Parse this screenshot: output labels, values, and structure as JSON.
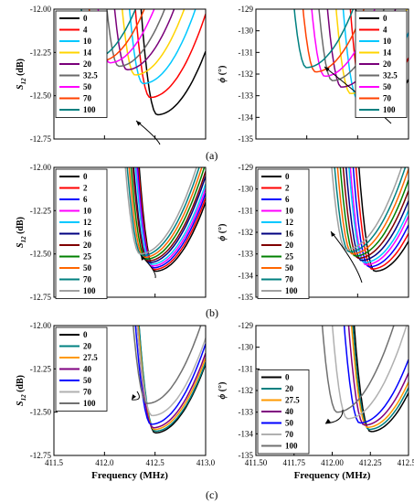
{
  "figure": {
    "panel_labels": [
      "(a)",
      "(b)",
      "(c)"
    ]
  },
  "chart_data": [
    {
      "type": "line",
      "panel": "a-left",
      "ylabel_main": "S",
      "ylabel_sub": "12",
      "ylabel_unit": " (dB)",
      "ylim": [
        -12.75,
        -12.0
      ],
      "yticks": [
        "-12.00",
        "-12.25",
        "-12.50",
        "-12.75"
      ],
      "xlim": [
        411.5,
        413.0
      ],
      "legend_labels": [
        "0",
        "4",
        "10",
        "14",
        "20",
        "32.5",
        "50",
        "70",
        "100"
      ],
      "colors": [
        "#000000",
        "#ff0000",
        "#00c8ff",
        "#ffd400",
        "#7a007a",
        "#6a6a6a",
        "#ff00ff",
        "#ff4000",
        "#008080"
      ],
      "series_min_x": [
        412.52,
        412.45,
        412.38,
        412.3,
        412.22,
        412.14,
        412.05,
        411.96,
        411.88
      ],
      "series_min_y": [
        -12.61,
        -12.51,
        -12.43,
        -12.38,
        -12.35,
        -12.33,
        -12.31,
        -12.3,
        -12.29
      ]
    },
    {
      "type": "line",
      "panel": "a-right",
      "ylabel_main": "ϕ",
      "ylabel_unit": " (°)",
      "ylim": [
        -135,
        -129
      ],
      "yticks": [
        "-129",
        "-130",
        "-131",
        "-132",
        "-133",
        "-134",
        "-135"
      ],
      "xlim": [
        411.5,
        412.5
      ],
      "legend_labels": [
        "0",
        "4",
        "10",
        "14",
        "20",
        "32.5",
        "50",
        "70",
        "100"
      ],
      "colors": [
        "#000000",
        "#ff0000",
        "#00c8ff",
        "#ffd400",
        "#7a007a",
        "#6a6a6a",
        "#ff00ff",
        "#ff4000",
        "#008080"
      ],
      "series_min_x": [
        412.26,
        412.22,
        412.17,
        412.12,
        412.06,
        412.0,
        411.95,
        411.89,
        411.83
      ],
      "series_min_y": [
        -133.9,
        -133.5,
        -133.2,
        -132.9,
        -132.6,
        -132.3,
        -132.1,
        -131.9,
        -131.7
      ]
    },
    {
      "type": "line",
      "panel": "b-left",
      "ylabel_main": "S",
      "ylabel_sub": "12",
      "ylabel_unit": " (dB)",
      "ylim": [
        -12.75,
        -12.0
      ],
      "yticks": [
        "-12.00",
        "-12.25",
        "-12.50",
        "-12.75"
      ],
      "xlim": [
        411.5,
        413.0
      ],
      "legend_labels": [
        "0",
        "2",
        "6",
        "10",
        "12",
        "16",
        "20",
        "25",
        "50",
        "70",
        "100"
      ],
      "colors": [
        "#000000",
        "#ff0000",
        "#0000ff",
        "#ff00ff",
        "#00c8ff",
        "#000080",
        "#800000",
        "#008000",
        "#ff6600",
        "#008080",
        "#a0a0a0"
      ],
      "series_min_x": [
        412.5,
        412.49,
        412.48,
        412.47,
        412.46,
        412.44,
        412.43,
        412.41,
        412.39,
        412.37,
        412.35
      ],
      "series_min_y": [
        -12.6,
        -12.59,
        -12.58,
        -12.57,
        -12.56,
        -12.55,
        -12.54,
        -12.53,
        -12.52,
        -12.51,
        -12.5
      ]
    },
    {
      "type": "line",
      "panel": "b-right",
      "ylabel_main": "ϕ",
      "ylabel_unit": " (°)",
      "ylim": [
        -135,
        -129
      ],
      "yticks": [
        "-129",
        "-130",
        "-131",
        "-132",
        "-133",
        "-134",
        "-135"
      ],
      "xlim": [
        411.5,
        412.5
      ],
      "legend_labels": [
        "0",
        "2",
        "6",
        "10",
        "12",
        "16",
        "20",
        "25",
        "50",
        "70",
        "100"
      ],
      "colors": [
        "#000000",
        "#ff0000",
        "#0000ff",
        "#ff00ff",
        "#00c8ff",
        "#000080",
        "#800000",
        "#008000",
        "#ff6600",
        "#008080",
        "#a0a0a0"
      ],
      "series_min_x": [
        412.28,
        412.26,
        412.24,
        412.22,
        412.21,
        412.19,
        412.17,
        412.15,
        412.13,
        412.11,
        412.09
      ],
      "series_min_y": [
        -133.8,
        -133.7,
        -133.6,
        -133.5,
        -133.4,
        -133.3,
        -133.2,
        -133.1,
        -133.0,
        -132.9,
        -132.8
      ]
    },
    {
      "type": "line",
      "panel": "c-left",
      "ylabel_main": "S",
      "ylabel_sub": "12",
      "ylabel_unit": " (dB)",
      "xlabel": "Frequency (MHz)",
      "ylim": [
        -12.75,
        -12.0
      ],
      "yticks": [
        "-12.00",
        "-12.25",
        "-12.50",
        "-12.75"
      ],
      "xlim": [
        411.5,
        413.0
      ],
      "xticks": [
        "411.5",
        "412.0",
        "412.5",
        "413.0"
      ],
      "legend_labels": [
        "0",
        "20",
        "27.5",
        "40",
        "50",
        "70",
        "100"
      ],
      "colors": [
        "#000000",
        "#008080",
        "#ff9900",
        "#800080",
        "#0000ff",
        "#b0b0b0",
        "#707070"
      ],
      "series_min_x": [
        412.5,
        412.5,
        412.49,
        412.48,
        412.46,
        412.47,
        412.42
      ],
      "series_min_y": [
        -12.62,
        -12.61,
        -12.6,
        -12.59,
        -12.57,
        -12.52,
        -12.45
      ]
    },
    {
      "type": "line",
      "panel": "c-right",
      "ylabel_main": "ϕ",
      "ylabel_unit": " (°)",
      "xlabel": "Frequency (MHz)",
      "ylim": [
        -135,
        -129
      ],
      "yticks": [
        "-129",
        "-130",
        "-131",
        "-132",
        "-133",
        "-134",
        "-135"
      ],
      "xlim": [
        411.5,
        412.5
      ],
      "xticks": [
        "411.50",
        "411.75",
        "412.00",
        "412.25",
        "412.50"
      ],
      "legend_labels": [
        "0",
        "20",
        "27.5",
        "40",
        "50",
        "70",
        "100"
      ],
      "colors": [
        "#000000",
        "#008080",
        "#ff9900",
        "#800080",
        "#0000ff",
        "#b0b0b0",
        "#707070"
      ],
      "series_min_x": [
        412.25,
        412.24,
        412.23,
        412.21,
        412.18,
        412.1,
        412.03
      ],
      "series_min_y": [
        -133.9,
        -133.8,
        -133.7,
        -133.6,
        -133.5,
        -133.3,
        -133.0
      ]
    }
  ]
}
